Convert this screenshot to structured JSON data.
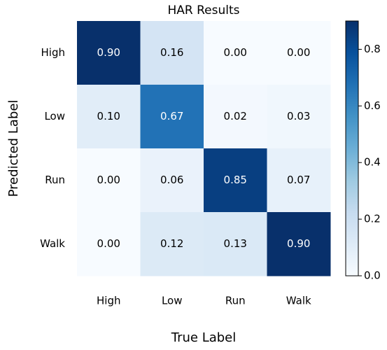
{
  "chart_data": {
    "type": "heatmap",
    "title": "HAR Results",
    "x_label": "True Label",
    "y_label": "Predicted Label",
    "categories": [
      "High",
      "Low",
      "Run",
      "Walk"
    ],
    "ycategories": [
      "High",
      "Low",
      "Run",
      "Walk"
    ],
    "values": [
      [
        0.9,
        0.16,
        0,
        0
      ],
      [
        0.1,
        0.67,
        0.02,
        0.03
      ],
      [
        0,
        0.06,
        0.85,
        0.07
      ],
      [
        0,
        0.12,
        0.13,
        0.9
      ]
    ],
    "value_labels": [
      [
        "0.90",
        "0.16",
        "0.00",
        "0.00"
      ],
      [
        "0.10",
        "0.67",
        "0.02",
        "0.03"
      ],
      [
        "0.00",
        "0.06",
        "0.85",
        "0.07"
      ],
      [
        "0.00",
        "0.12",
        "0.13",
        "0.90"
      ]
    ],
    "colormap": [
      "#f7fbff",
      "#deebf7",
      "#c6dbef",
      "#9ecae1",
      "#6baed6",
      "#4292c6",
      "#2171b5",
      "#08519c",
      "#08306b"
    ],
    "zlim": [
      0,
      0.9
    ],
    "zticks": [
      {
        "value": 0,
        "label": "0.0"
      },
      0.2,
      0.4,
      0.6,
      0.8
    ]
  }
}
